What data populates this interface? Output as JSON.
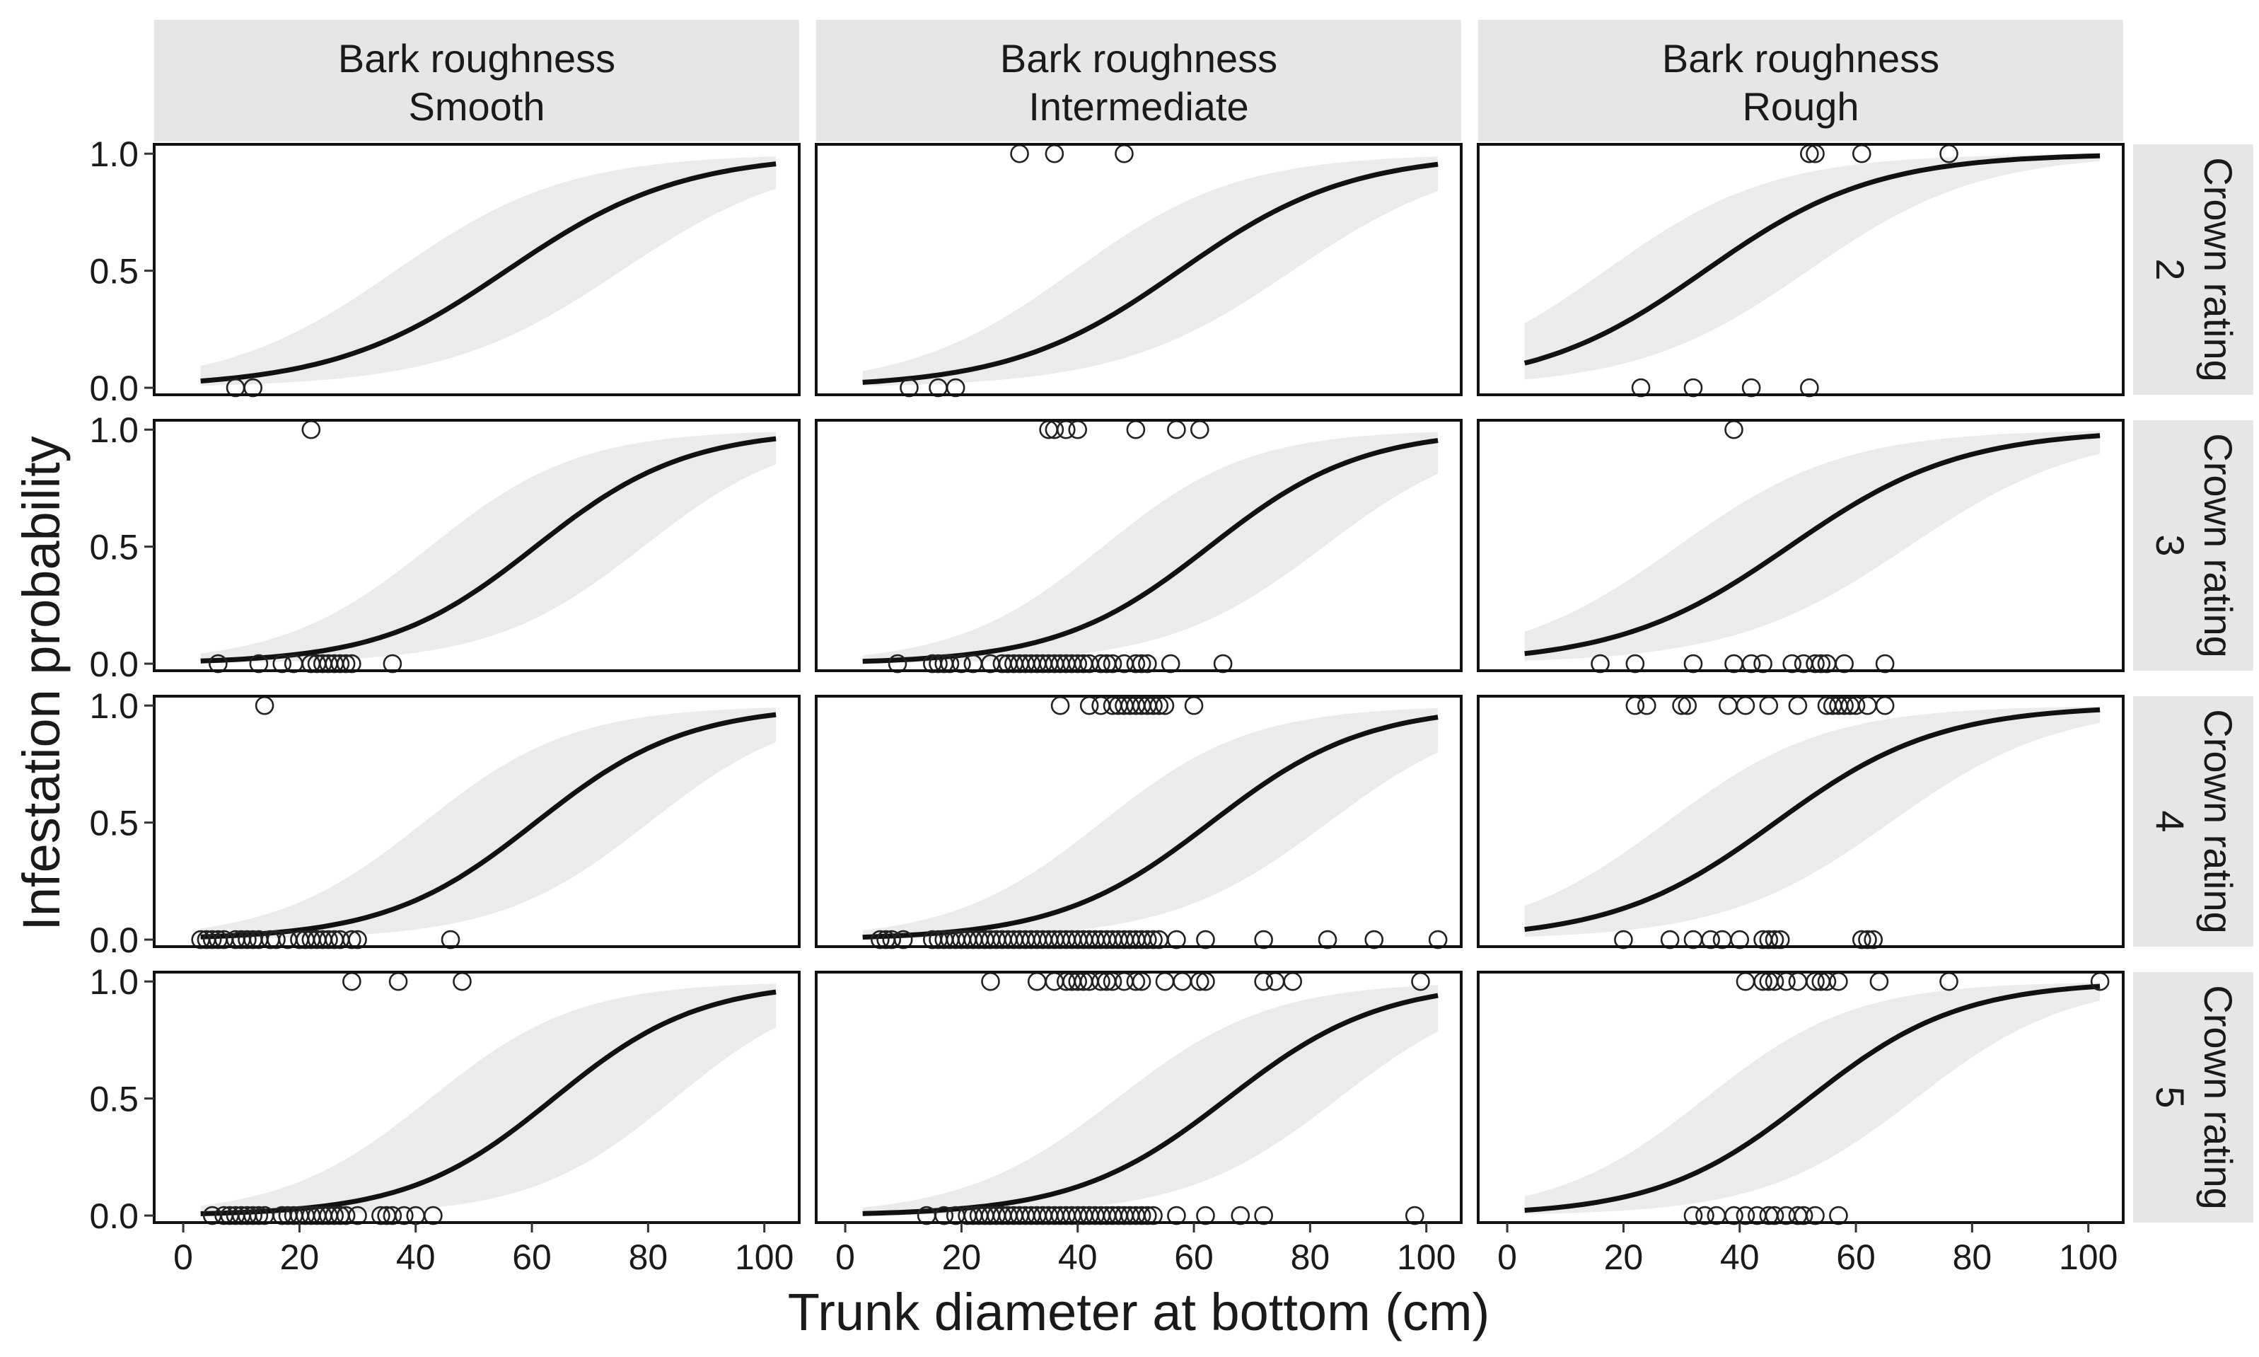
{
  "chart_data": {
    "type": "line",
    "subtype": "faceted logistic regression with confidence band and observed points",
    "xlabel": "Trunk diameter at bottom (cm)",
    "ylabel": "Infestation probability",
    "xlim": [
      -5,
      106
    ],
    "ylim": [
      -0.03,
      1.04
    ],
    "xticks": [
      "0",
      "20",
      "40",
      "60",
      "80",
      "100"
    ],
    "yticks": [
      "0.0",
      "0.5",
      "1.0"
    ],
    "grid": false,
    "col_strip_title": "Bark roughness",
    "columns": [
      "Smooth",
      "Intermediate",
      "Rough"
    ],
    "row_strip_title": "Crown rating",
    "rows": [
      "2",
      "3",
      "4",
      "5"
    ],
    "panels": [
      {
        "row": "2",
        "col": "Smooth",
        "x_range": [
          3,
          102
        ],
        "fit": {
          "intercept": -3.71,
          "slope": 0.0667
        },
        "band": {
          "lower": {
            "intercept": -4.94,
            "slope": 0.0655
          },
          "upper": {
            "intercept": -2.48,
            "slope": 0.0679
          }
        },
        "points_y0": [
          9,
          12
        ],
        "points_y1": []
      },
      {
        "row": "2",
        "col": "Intermediate",
        "x_range": [
          3,
          102
        ],
        "fit": {
          "intercept": -3.95,
          "slope": 0.0686
        },
        "band": {
          "lower": {
            "intercept": -5.12,
            "slope": 0.0665
          },
          "upper": {
            "intercept": -2.78,
            "slope": 0.0707
          }
        },
        "points_y0": [
          11,
          16,
          19
        ],
        "points_y1": [
          30,
          36,
          48
        ]
      },
      {
        "row": "2",
        "col": "Rough",
        "x_range": [
          3,
          102
        ],
        "fit": {
          "intercept": -2.35,
          "slope": 0.069
        },
        "band": {
          "lower": {
            "intercept": -3.52,
            "slope": 0.068
          },
          "upper": {
            "intercept": -1.18,
            "slope": 0.07
          }
        },
        "points_y0": [
          23,
          32,
          42,
          52
        ],
        "points_y1": [
          52,
          53,
          61,
          76
        ]
      },
      {
        "row": "3",
        "col": "Smooth",
        "x_range": [
          3,
          102
        ],
        "fit": {
          "intercept": -4.7,
          "slope": 0.0775
        },
        "band": {
          "lower": {
            "intercept": -6.08,
            "slope": 0.0768
          },
          "upper": {
            "intercept": -3.32,
            "slope": 0.0782
          }
        },
        "points_y0": [
          6,
          13,
          17,
          19,
          22,
          23,
          24,
          25,
          26,
          27,
          28,
          29,
          36
        ],
        "points_y1": [
          22
        ]
      },
      {
        "row": "3",
        "col": "Intermediate",
        "x_range": [
          3,
          102
        ],
        "fit": {
          "intercept": -4.82,
          "slope": 0.0769
        },
        "band": {
          "lower": {
            "intercept": -6.11,
            "slope": 0.0742
          },
          "upper": {
            "intercept": -3.53,
            "slope": 0.0796
          }
        },
        "points_y0": [
          9,
          15,
          16,
          17,
          18,
          20,
          22,
          25,
          27,
          28,
          29,
          30,
          31,
          32,
          33,
          34,
          35,
          36,
          37,
          38,
          39,
          40,
          41,
          42,
          44,
          45,
          46,
          48,
          50,
          51,
          52,
          56,
          65
        ],
        "points_y1": [
          35,
          36,
          38,
          40,
          50,
          57,
          61
        ]
      },
      {
        "row": "3",
        "col": "Rough",
        "x_range": [
          3,
          102
        ],
        "fit": {
          "intercept": -3.3,
          "slope": 0.068
        },
        "band": {
          "lower": {
            "intercept": -4.55,
            "slope": 0.0659
          },
          "upper": {
            "intercept": -2.05,
            "slope": 0.0701
          }
        },
        "points_y0": [
          16,
          22,
          32,
          39,
          42,
          44,
          49,
          51,
          53,
          54,
          55,
          58,
          65
        ],
        "points_y1": [
          39
        ]
      },
      {
        "row": "4",
        "col": "Smooth",
        "x_range": [
          3,
          102
        ],
        "fit": {
          "intercept": -4.7,
          "slope": 0.0775
        },
        "band": {
          "lower": {
            "intercept": -6.18,
            "slope": 0.0771
          },
          "upper": {
            "intercept": -3.22,
            "slope": 0.0779
          }
        },
        "points_y0": [
          3,
          4,
          5,
          6,
          7,
          9,
          10,
          11,
          12,
          13,
          15,
          16,
          18,
          20,
          21,
          22,
          23,
          24,
          25,
          26,
          27,
          29,
          30,
          46
        ],
        "points_y1": [
          14
        ]
      },
      {
        "row": "4",
        "col": "Intermediate",
        "x_range": [
          3,
          102
        ],
        "fit": {
          "intercept": -4.76,
          "slope": 0.0756
        },
        "band": {
          "lower": {
            "intercept": -6.09,
            "slope": 0.0733
          },
          "upper": {
            "intercept": -3.43,
            "slope": 0.0779
          }
        },
        "points_y0": [
          6,
          7,
          8,
          10,
          15,
          16,
          17,
          18,
          19,
          20,
          21,
          22,
          23,
          24,
          25,
          26,
          27,
          28,
          29,
          30,
          31,
          32,
          33,
          34,
          35,
          36,
          37,
          38,
          39,
          40,
          41,
          42,
          43,
          44,
          45,
          46,
          47,
          48,
          49,
          50,
          51,
          52,
          53,
          54,
          57,
          62,
          72,
          83,
          91,
          102
        ],
        "points_y1": [
          37,
          42,
          44,
          46,
          47,
          48,
          49,
          50,
          51,
          52,
          53,
          54,
          55,
          60
        ]
      },
      {
        "row": "4",
        "col": "Rough",
        "x_range": [
          3,
          102
        ],
        "fit": {
          "intercept": -3.3,
          "slope": 0.0715
        },
        "band": {
          "lower": {
            "intercept": -4.6,
            "slope": 0.0698
          },
          "upper": {
            "intercept": -2.0,
            "slope": 0.0732
          }
        },
        "points_y0": [
          20,
          28,
          32,
          35,
          37,
          40,
          44,
          45,
          46,
          47,
          61,
          62,
          63
        ],
        "points_y1": [
          22,
          24,
          30,
          31,
          38,
          41,
          45,
          50,
          55,
          56,
          57,
          58,
          59,
          60,
          62,
          65
        ]
      },
      {
        "row": "5",
        "col": "Smooth",
        "x_range": [
          3,
          102
        ],
        "fit": {
          "intercept": -5.1,
          "slope": 0.08
        },
        "band": {
          "lower": {
            "intercept": -6.84,
            "slope": 0.0809
          },
          "upper": {
            "intercept": -3.36,
            "slope": 0.0791
          }
        },
        "points_y0": [
          5,
          7,
          8,
          9,
          10,
          11,
          12,
          13,
          14,
          17,
          18,
          19,
          20,
          21,
          22,
          23,
          24,
          25,
          26,
          27,
          28,
          30,
          34,
          35,
          36,
          38,
          40,
          43
        ],
        "points_y1": [
          29,
          37,
          48
        ]
      },
      {
        "row": "5",
        "col": "Intermediate",
        "x_range": [
          3,
          102
        ],
        "fit": {
          "intercept": -5.0,
          "slope": 0.076
        },
        "band": {
          "lower": {
            "intercept": -6.45,
            "slope": 0.076
          },
          "upper": {
            "intercept": -3.55,
            "slope": 0.076
          }
        },
        "points_y0": [
          14,
          17,
          19,
          21,
          22,
          23,
          24,
          25,
          26,
          27,
          28,
          29,
          30,
          31,
          32,
          33,
          34,
          35,
          36,
          37,
          38,
          39,
          40,
          41,
          42,
          43,
          44,
          45,
          46,
          47,
          48,
          49,
          50,
          51,
          52,
          53,
          57,
          62,
          68,
          72,
          98
        ],
        "points_y1": [
          25,
          33,
          36,
          38,
          39,
          40,
          41,
          42,
          44,
          45,
          46,
          48,
          50,
          51,
          55,
          58,
          61,
          62,
          72,
          74,
          77,
          99
        ]
      },
      {
        "row": "5",
        "col": "Rough",
        "x_range": [
          3,
          102
        ],
        "fit": {
          "intercept": -4.0,
          "slope": 0.077
        },
        "band": {
          "lower": {
            "intercept": -5.35,
            "slope": 0.0761
          },
          "upper": {
            "intercept": -2.65,
            "slope": 0.0779
          }
        },
        "points_y0": [
          32,
          34,
          36,
          39,
          41,
          43,
          45,
          46,
          48,
          50,
          51,
          53,
          57
        ],
        "points_y1": [
          41,
          44,
          45,
          46,
          48,
          50,
          53,
          54,
          55,
          57,
          64,
          76,
          102
        ]
      }
    ]
  }
}
